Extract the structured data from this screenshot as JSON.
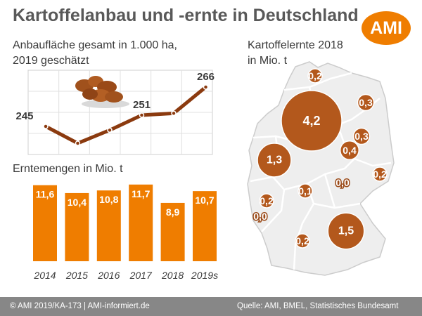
{
  "header": {
    "title": "Kartoffelanbau und -ernte in Deutschland",
    "logo_text": "AMI"
  },
  "labels": {
    "area_line1": "Anbaufläche gesamt in 1.000 ha,",
    "area_line2": "2019 geschätzt",
    "harvest": "Erntemengen in Mio. t",
    "map_line1": "Kartoffelernte 2018",
    "map_line2": "in Mio. t"
  },
  "footer": {
    "left": "© AMI 2019/KA-173 | AMI-informiert.de",
    "right": "Quelle: AMI, BMEL, Statistisches Bundesamt"
  },
  "colors": {
    "orange": "#ef7d00",
    "brown": "#8b3a0f",
    "map_bubble": "#b3581c",
    "map_fill": "#eeeeee"
  },
  "chart_data": [
    {
      "type": "line",
      "title": "Anbaufläche gesamt in 1.000 ha, 2019 geschätzt",
      "x": [
        "2014",
        "2015",
        "2016",
        "2017",
        "2018",
        "2019"
      ],
      "values": [
        245,
        236,
        243,
        251,
        252,
        266
      ],
      "point_labels": [
        "245",
        "",
        "",
        "251",
        "",
        "266"
      ],
      "ylim": [
        230,
        275
      ],
      "grid": true
    },
    {
      "type": "bar",
      "title": "Erntemengen in Mio. t",
      "categories": [
        "2014",
        "2015",
        "2016",
        "2017",
        "2018",
        "2019s"
      ],
      "values": [
        11.6,
        10.4,
        10.8,
        11.7,
        8.9,
        10.7
      ],
      "value_labels": [
        "11,6",
        "10,4",
        "10,8",
        "11,7",
        "8,9",
        "10,7"
      ],
      "ylim": [
        0,
        12
      ]
    },
    {
      "type": "scatter",
      "title": "Kartoffelernte 2018 in Mio. t",
      "series": [
        {
          "label": "0,2",
          "value": 0.2
        },
        {
          "label": "0,3",
          "value": 0.3
        },
        {
          "label": "4,2",
          "value": 4.2
        },
        {
          "label": "0,3",
          "value": 0.3
        },
        {
          "label": "0,4",
          "value": 0.4
        },
        {
          "label": "1,3",
          "value": 1.3
        },
        {
          "label": "0,2",
          "value": 0.2
        },
        {
          "label": "0,1",
          "value": 0.1
        },
        {
          "label": "0,0",
          "value": 0.0
        },
        {
          "label": "0,2",
          "value": 0.2
        },
        {
          "label": "0,0",
          "value": 0.0
        },
        {
          "label": "1,5",
          "value": 1.5
        },
        {
          "label": "0,2",
          "value": 0.2
        }
      ]
    }
  ]
}
